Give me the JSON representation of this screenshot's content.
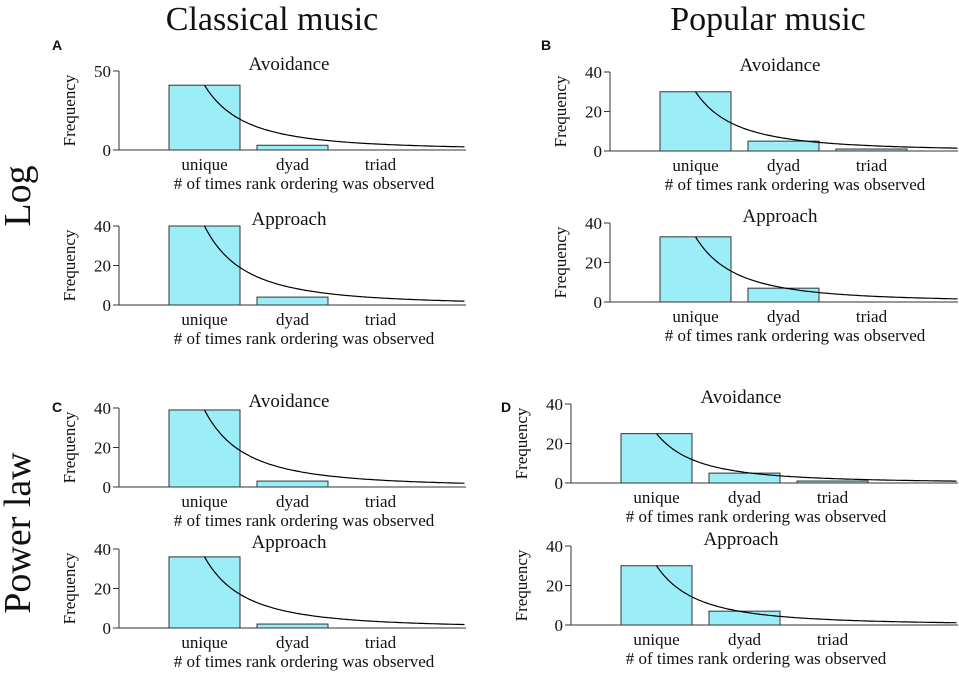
{
  "column_headers": [
    "Classical music",
    "Popular music"
  ],
  "row_headers": [
    "Log",
    "Power law"
  ],
  "panel_letters": [
    "A",
    "B",
    "C",
    "D"
  ],
  "chart_data": [
    {
      "panel": "A",
      "music": "Classical music",
      "fit": "Log",
      "subplots": [
        {
          "type": "bar",
          "title": "Avoidance",
          "categories": [
            "unique",
            "dyad",
            "triad"
          ],
          "values": [
            41,
            3,
            0.3
          ],
          "xlabel": "# of times rank ordering was observed",
          "ylabel": "Frequency",
          "ylim": [
            0,
            50
          ],
          "yticks": [
            0,
            50
          ]
        },
        {
          "type": "bar",
          "title": "Approach",
          "categories": [
            "unique",
            "dyad",
            "triad"
          ],
          "values": [
            40,
            4,
            0.3
          ],
          "xlabel": "# of times rank ordering was observed",
          "ylabel": "Frequency",
          "ylim": [
            0,
            40
          ],
          "yticks": [
            0,
            20,
            40
          ]
        }
      ]
    },
    {
      "panel": "B",
      "music": "Popular music",
      "fit": "Log",
      "subplots": [
        {
          "type": "bar",
          "title": "Avoidance",
          "categories": [
            "unique",
            "dyad",
            "triad"
          ],
          "values": [
            30,
            5,
            1
          ],
          "xlabel": "# of times rank ordering was observed",
          "ylabel": "Frequency",
          "ylim": [
            0,
            40
          ],
          "yticks": [
            0,
            20,
            40
          ]
        },
        {
          "type": "bar",
          "title": "Approach",
          "categories": [
            "unique",
            "dyad",
            "triad"
          ],
          "values": [
            33,
            7,
            0
          ],
          "xlabel": "# of times rank ordering was observed",
          "ylabel": "Frequency",
          "ylim": [
            0,
            40
          ],
          "yticks": [
            0,
            20,
            40
          ]
        }
      ]
    },
    {
      "panel": "C",
      "music": "Classical music",
      "fit": "Power law",
      "subplots": [
        {
          "type": "bar",
          "title": "Avoidance",
          "categories": [
            "unique",
            "dyad",
            "triad"
          ],
          "values": [
            39,
            3,
            0.3
          ],
          "xlabel": "# of times rank ordering was observed",
          "ylabel": "Frequency",
          "ylim": [
            0,
            40
          ],
          "yticks": [
            0,
            20,
            40
          ]
        },
        {
          "type": "bar",
          "title": "Approach",
          "categories": [
            "unique",
            "dyad",
            "triad"
          ],
          "values": [
            36,
            2,
            0.3
          ],
          "xlabel": "# of times rank ordering was observed",
          "ylabel": "Frequency",
          "ylim": [
            0,
            40
          ],
          "yticks": [
            0,
            20,
            40
          ]
        }
      ]
    },
    {
      "panel": "D",
      "music": "Popular music",
      "fit": "Power law",
      "subplots": [
        {
          "type": "bar",
          "title": "Avoidance",
          "categories": [
            "unique",
            "dyad",
            "triad"
          ],
          "values": [
            25,
            5,
            1
          ],
          "xlabel": "# of times rank ordering was observed",
          "ylabel": "Frequency",
          "ylim": [
            0,
            40
          ],
          "yticks": [
            0,
            20,
            40
          ]
        },
        {
          "type": "bar",
          "title": "Approach",
          "categories": [
            "unique",
            "dyad",
            "triad"
          ],
          "values": [
            30,
            7,
            0
          ],
          "xlabel": "# of times rank ordering was observed",
          "ylabel": "Frequency",
          "ylim": [
            0,
            40
          ],
          "yticks": [
            0,
            20,
            40
          ]
        }
      ]
    }
  ],
  "colors": {
    "bar_fill": "#9beef8",
    "bar_stroke": "#333333",
    "axis": "#333333",
    "curve": "#000000",
    "text": "#111111"
  }
}
